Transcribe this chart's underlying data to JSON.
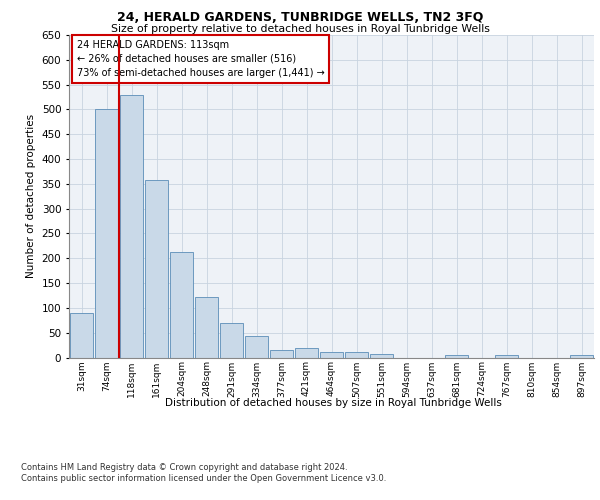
{
  "title": "24, HERALD GARDENS, TUNBRIDGE WELLS, TN2 3FQ",
  "subtitle": "Size of property relative to detached houses in Royal Tunbridge Wells",
  "xlabel": "Distribution of detached houses by size in Royal Tunbridge Wells",
  "ylabel": "Number of detached properties",
  "footnote1": "Contains HM Land Registry data © Crown copyright and database right 2024.",
  "footnote2": "Contains public sector information licensed under the Open Government Licence v3.0.",
  "annotation_title": "24 HERALD GARDENS: 113sqm",
  "annotation_line1": "← 26% of detached houses are smaller (516)",
  "annotation_line2": "73% of semi-detached houses are larger (1,441) →",
  "bar_color": "#c9d9e8",
  "bar_edge_color": "#5b8db8",
  "grid_color": "#c8d4e0",
  "annotation_box_color": "#cc0000",
  "marker_line_color": "#cc0000",
  "categories": [
    "31sqm",
    "74sqm",
    "118sqm",
    "161sqm",
    "204sqm",
    "248sqm",
    "291sqm",
    "334sqm",
    "377sqm",
    "421sqm",
    "464sqm",
    "507sqm",
    "551sqm",
    "594sqm",
    "637sqm",
    "681sqm",
    "724sqm",
    "767sqm",
    "810sqm",
    "854sqm",
    "897sqm"
  ],
  "values": [
    90,
    500,
    530,
    358,
    213,
    122,
    70,
    43,
    16,
    19,
    11,
    11,
    7,
    0,
    0,
    6,
    0,
    5,
    0,
    0,
    5
  ],
  "marker_bar_index": 2,
  "ylim": [
    0,
    650
  ],
  "yticks": [
    0,
    50,
    100,
    150,
    200,
    250,
    300,
    350,
    400,
    450,
    500,
    550,
    600,
    650
  ],
  "background_color": "#eef2f7"
}
